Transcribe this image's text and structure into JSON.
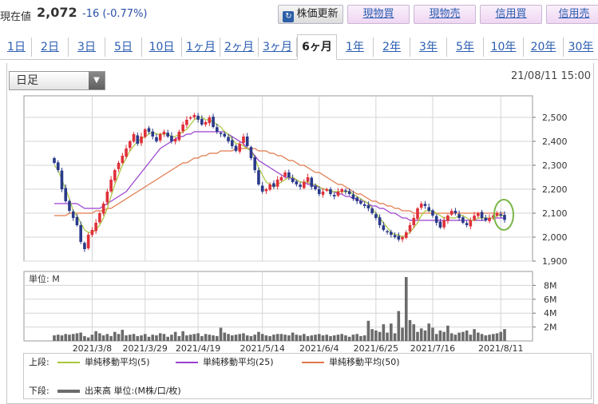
{
  "header": {
    "price_label": "現在値",
    "price_value": "2,072",
    "price_change": "-16 (-0.77%)",
    "refresh_label": "株価更新",
    "genbutsu_buy": "現物買",
    "genbutsu_sell": "現物売",
    "shinyo_buy": "信用買",
    "shinyo_sell": "信用売"
  },
  "tabs": [
    "1日",
    "2日",
    "3日",
    "5日",
    "10日",
    "1ヶ月",
    "2ヶ月",
    "3ヶ月",
    "6ヶ月",
    "1年",
    "2年",
    "3年",
    "5年",
    "10年",
    "20年",
    "30年"
  ],
  "active_tab": "6ヶ月",
  "period_select": {
    "value": "日足"
  },
  "timestamp": "21/08/11 15:00",
  "colors": {
    "up": "#e0303a",
    "down": "#2a3a8a",
    "ma5": "#a8c63a",
    "ma25": "#9a3fd0",
    "ma50": "#e0784a",
    "volume": "#6b6b6b",
    "highlight": "#7ab648"
  },
  "chart_data": [
    {
      "type": "candlestick",
      "y_ticks": [
        "2,500",
        "2,400",
        "2,300",
        "2,200",
        "2,100",
        "2,000",
        "1,900"
      ],
      "y_tick_values": [
        2500,
        2400,
        2300,
        2200,
        2100,
        2000,
        1900
      ],
      "ylim": [
        1900,
        2590
      ],
      "x_labels": [
        "2021/3/8",
        "2021/3/29",
        "2021/4/19",
        "2021/5/14",
        "2021/6/4",
        "2021/6/25",
        "2021/7/16",
        "2021/8/11"
      ],
      "x_label_index": [
        10,
        24,
        38,
        55,
        70,
        85,
        100,
        118
      ],
      "n_days": 120,
      "ohlc_close": [
        2310,
        2280,
        2200,
        2150,
        2110,
        2080,
        2050,
        1980,
        1950,
        2010,
        2030,
        2060,
        2100,
        2140,
        2190,
        2240,
        2280,
        2310,
        2340,
        2370,
        2400,
        2430,
        2390,
        2420,
        2450,
        2440,
        2420,
        2400,
        2430,
        2440,
        2420,
        2400,
        2410,
        2440,
        2470,
        2490,
        2500,
        2510,
        2490,
        2470,
        2480,
        2500,
        2460,
        2440,
        2430,
        2420,
        2400,
        2380,
        2360,
        2390,
        2420,
        2380,
        2330,
        2280,
        2220,
        2190,
        2200,
        2220,
        2210,
        2240,
        2250,
        2270,
        2250,
        2230,
        2220,
        2210,
        2230,
        2250,
        2210,
        2200,
        2180,
        2190,
        2200,
        2180,
        2170,
        2190,
        2200,
        2190,
        2180,
        2160,
        2150,
        2140,
        2130,
        2120,
        2100,
        2080,
        2050,
        2030,
        2020,
        2010,
        2000,
        1990,
        2000,
        2020,
        2050,
        2080,
        2120,
        2140,
        2130,
        2110,
        2090,
        2060,
        2040,
        2070,
        2090,
        2110,
        2100,
        2080,
        2060,
        2050,
        2070,
        2090,
        2100,
        2080,
        2070,
        2080,
        2090,
        2100,
        2090,
        2072
      ],
      "ma5": [
        2300,
        2280,
        2240,
        2200,
        2160,
        2110,
        2090,
        2060,
        2030,
        2020,
        2020,
        2030,
        2050,
        2080,
        2120,
        2170,
        2220,
        2260,
        2300,
        2330,
        2360,
        2380,
        2400,
        2410,
        2420,
        2430,
        2440,
        2430,
        2430,
        2430,
        2430,
        2420,
        2420,
        2430,
        2440,
        2450,
        2470,
        2490,
        2500,
        2500,
        2490,
        2490,
        2480,
        2470,
        2460,
        2440,
        2430,
        2410,
        2390,
        2390,
        2380,
        2370,
        2360,
        2330,
        2290,
        2260,
        2230,
        2220,
        2210,
        2220,
        2230,
        2240,
        2250,
        2250,
        2240,
        2230,
        2230,
        2230,
        2220,
        2220,
        2210,
        2200,
        2200,
        2190,
        2190,
        2190,
        2190,
        2190,
        2190,
        2180,
        2170,
        2160,
        2150,
        2140,
        2120,
        2100,
        2080,
        2060,
        2040,
        2020,
        2010,
        2010,
        2000,
        2010,
        2020,
        2040,
        2060,
        2090,
        2110,
        2110,
        2110,
        2100,
        2090,
        2080,
        2080,
        2080,
        2080,
        2090,
        2090,
        2080,
        2070,
        2070,
        2080,
        2080,
        2080,
        2080,
        2080,
        2090,
        2090,
        2090
      ],
      "ma25": [
        2140,
        2140,
        2140,
        2140,
        2140,
        2140,
        2140,
        2130,
        2120,
        2120,
        2120,
        2120,
        2120,
        2130,
        2140,
        2150,
        2160,
        2170,
        2180,
        2190,
        2210,
        2230,
        2250,
        2270,
        2290,
        2310,
        2330,
        2350,
        2370,
        2380,
        2390,
        2400,
        2410,
        2420,
        2420,
        2430,
        2430,
        2440,
        2440,
        2440,
        2440,
        2440,
        2440,
        2440,
        2440,
        2440,
        2430,
        2420,
        2410,
        2400,
        2390,
        2370,
        2360,
        2340,
        2320,
        2310,
        2300,
        2290,
        2280,
        2270,
        2260,
        2250,
        2250,
        2240,
        2240,
        2230,
        2230,
        2220,
        2220,
        2210,
        2210,
        2200,
        2200,
        2190,
        2190,
        2180,
        2180,
        2170,
        2170,
        2160,
        2160,
        2150,
        2150,
        2140,
        2130,
        2130,
        2120,
        2120,
        2110,
        2100,
        2100,
        2090,
        2080,
        2080,
        2070,
        2070,
        2070,
        2070,
        2070,
        2070,
        2070,
        2070,
        2070,
        2070,
        2070,
        2070,
        2070,
        2070,
        2070,
        2070,
        2070,
        2070,
        2070,
        2070,
        2070,
        2080,
        2080,
        2080,
        2080,
        2080
      ],
      "ma50": [
        2090,
        2090,
        2090,
        2090,
        2100,
        2100,
        2100,
        2100,
        2100,
        2100,
        2100,
        2110,
        2110,
        2110,
        2120,
        2120,
        2130,
        2140,
        2150,
        2160,
        2170,
        2180,
        2190,
        2200,
        2210,
        2220,
        2230,
        2240,
        2250,
        2260,
        2270,
        2280,
        2290,
        2300,
        2310,
        2310,
        2320,
        2330,
        2330,
        2340,
        2340,
        2350,
        2350,
        2350,
        2360,
        2360,
        2360,
        2360,
        2370,
        2370,
        2370,
        2370,
        2370,
        2370,
        2360,
        2360,
        2360,
        2350,
        2350,
        2340,
        2340,
        2330,
        2320,
        2320,
        2310,
        2300,
        2300,
        2290,
        2280,
        2270,
        2270,
        2260,
        2250,
        2240,
        2230,
        2220,
        2220,
        2210,
        2200,
        2190,
        2180,
        2180,
        2170,
        2160,
        2150,
        2150,
        2140,
        2140,
        2130,
        2130,
        2120,
        2120,
        2110,
        2110,
        2110,
        2100,
        2100,
        2100,
        2100,
        2100,
        2100,
        2100,
        2100,
        2100,
        2100,
        2100,
        2100,
        2100,
        2100,
        2100,
        2100,
        2100,
        2100,
        2100,
        2100,
        2100,
        2100,
        2100,
        2100,
        2100
      ],
      "volume_label": "単位: M",
      "volume_ticks": [
        "8M",
        "6M",
        "4M",
        "2M"
      ],
      "volume_tick_values": [
        8,
        6,
        4,
        2
      ],
      "volume_max": 10,
      "volume": [
        0.8,
        0.9,
        0.8,
        1.0,
        0.9,
        1.0,
        1.1,
        1.2,
        0.7,
        0.5,
        0.9,
        1.4,
        1.1,
        0.8,
        1.0,
        0.7,
        1.3,
        1.0,
        1.6,
        0.8,
        0.9,
        1.0,
        0.7,
        0.8,
        1.0,
        0.6,
        0.9,
        0.8,
        1.1,
        1.0,
        0.6,
        0.9,
        1.3,
        0.7,
        1.4,
        0.8,
        0.9,
        1.0,
        1.1,
        0.7,
        1.0,
        0.9,
        0.8,
        0.7,
        1.9,
        1.2,
        1.0,
        0.8,
        0.9,
        1.0,
        1.1,
        0.8,
        0.7,
        0.9,
        1.3,
        1.0,
        0.8,
        0.7,
        0.9,
        1.0,
        1.0,
        0.9,
        0.8,
        1.2,
        0.9,
        0.8,
        1.0,
        0.7,
        0.8,
        0.9,
        1.0,
        0.8,
        0.9,
        0.7,
        0.8,
        0.9,
        1.0,
        0.8,
        0.6,
        0.9,
        1.0,
        0.7,
        0.8,
        2.9,
        1.7,
        1.5,
        1.3,
        2.4,
        1.2,
        2.5,
        1.1,
        4.3,
        1.9,
        9.2,
        3.0,
        2.4,
        1.3,
        1.8,
        1.5,
        2.5,
        1.9,
        1.0,
        1.5,
        1.3,
        2.2,
        1.1,
        0.9,
        1.2,
        1.3,
        1.5,
        0.9,
        1.7,
        1.2,
        1.0,
        0.8,
        0.9,
        1.0,
        1.1,
        1.3,
        1.7
      ]
    }
  ],
  "legend": {
    "upper_label": "上段:",
    "lower_label": "下段:",
    "ma5_label": "単純移動平均(5)",
    "ma25_label": "単純移動平均(25)",
    "ma50_label": "単純移動平均(50)",
    "volume_label": "出来高 単位:(M株/口/枚)"
  }
}
